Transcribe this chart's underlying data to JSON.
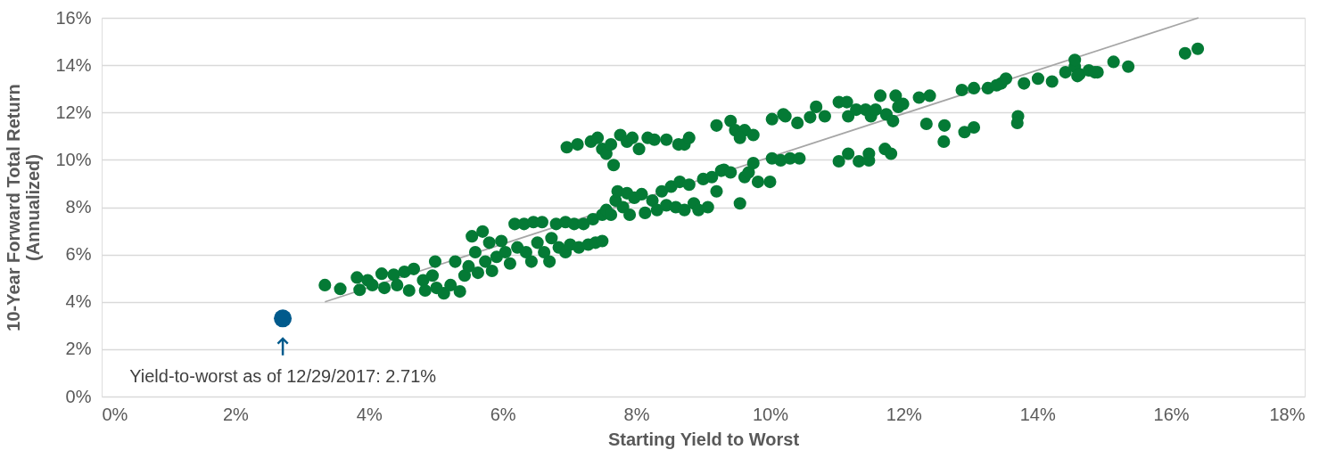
{
  "chart_data": {
    "type": "scatter",
    "xlabel": "Starting Yield to Worst",
    "ylabel": "10-Year Forward Total Return\n(Annualized)",
    "xlim": [
      0,
      18
    ],
    "ylim": [
      0,
      16
    ],
    "xticks": [
      {
        "value": 0,
        "label": "0%"
      },
      {
        "value": 2,
        "label": "2%"
      },
      {
        "value": 4,
        "label": "4%"
      },
      {
        "value": 6,
        "label": "6%"
      },
      {
        "value": 8,
        "label": "8%"
      },
      {
        "value": 10,
        "label": "10%"
      },
      {
        "value": 12,
        "label": "12%"
      },
      {
        "value": 14,
        "label": "14%"
      },
      {
        "value": 16,
        "label": "16%"
      },
      {
        "value": 18,
        "label": "18%"
      }
    ],
    "yticks": [
      {
        "value": 0,
        "label": "0%"
      },
      {
        "value": 2,
        "label": "2%"
      },
      {
        "value": 4,
        "label": "4%"
      },
      {
        "value": 6,
        "label": "6%"
      },
      {
        "value": 8,
        "label": "8%"
      },
      {
        "value": 10,
        "label": "10%"
      },
      {
        "value": 12,
        "label": "12%"
      },
      {
        "value": 14,
        "label": "14%"
      },
      {
        "value": 16,
        "label": "16%"
      }
    ],
    "grid": "y",
    "marker": "circle",
    "series": [
      {
        "type": "line",
        "marker": "none",
        "color": "#a6a6a6",
        "x": [
          3.34,
          16.41
        ],
        "values": [
          4.0,
          16.0
        ]
      },
      {
        "color": "#047a35",
        "x": [
          3.34,
          3.57,
          3.82,
          3.86,
          3.98,
          4.05,
          4.19,
          4.23,
          4.37,
          4.42,
          4.53,
          4.6,
          4.67,
          4.81,
          4.84,
          4.95,
          4.99,
          5.01,
          5.12,
          5.22,
          5.29,
          5.36,
          5.43,
          5.49,
          5.54,
          5.59,
          5.63,
          5.7,
          5.74,
          5.8,
          5.84,
          5.91,
          5.98,
          6.04,
          6.11,
          6.18,
          6.22,
          6.32,
          6.35,
          6.43,
          6.46,
          6.52,
          6.59,
          6.62,
          6.7,
          6.73,
          6.8,
          6.84,
          6.94,
          6.94,
          7.01,
          7.07,
          7.14,
          7.21,
          7.28,
          7.35,
          7.39,
          7.49,
          7.49,
          7.55,
          7.62,
          7.69,
          7.72,
          7.8,
          7.86,
          7.9,
          7.97,
          8.08,
          8.13,
          8.24,
          8.31,
          8.38,
          8.45,
          8.52,
          8.59,
          8.65,
          8.72,
          8.79,
          8.86,
          8.93,
          9.0,
          9.07,
          9.13,
          9.2,
          9.27,
          9.31,
          9.41,
          9.55,
          9.62,
          9.68,
          9.75,
          9.82,
          10.0,
          10.03,
          10.16,
          10.3,
          10.44,
          6.96,
          7.12,
          7.32,
          7.42,
          7.49,
          7.55,
          7.62,
          7.66,
          7.76,
          7.86,
          7.94,
          8.04,
          8.17,
          8.27,
          8.45,
          8.63,
          8.72,
          8.79,
          9.2,
          9.41,
          9.48,
          9.62,
          9.75,
          9.55,
          10.03,
          10.23,
          10.2,
          10.41,
          10.6,
          10.69,
          10.82,
          11.03,
          11.15,
          11.17,
          11.29,
          11.43,
          11.51,
          11.58,
          11.65,
          11.74,
          11.84,
          11.88,
          11.92,
          11.99,
          12.23,
          12.39,
          12.34,
          12.61,
          12.6,
          12.91,
          13.05,
          12.87,
          13.05,
          13.46,
          13.71,
          13.7,
          11.03,
          11.17,
          11.33,
          11.48,
          11.48,
          11.72,
          11.81,
          13.26,
          13.53,
          13.39,
          13.8,
          14.01,
          14.22,
          14.42,
          14.56,
          14.63,
          14.77,
          14.9,
          14.56,
          14.6,
          14.86,
          15.14,
          15.36,
          16.21,
          16.4
        ],
        "values": [
          4.71,
          4.55,
          5.03,
          4.51,
          4.91,
          4.71,
          5.19,
          4.59,
          5.15,
          4.71,
          5.27,
          4.48,
          5.39,
          4.91,
          4.48,
          5.11,
          5.7,
          4.59,
          4.36,
          4.71,
          5.7,
          4.44,
          5.11,
          5.5,
          6.77,
          6.1,
          5.23,
          6.97,
          5.7,
          6.5,
          5.31,
          5.9,
          6.57,
          6.1,
          5.62,
          7.29,
          6.3,
          7.29,
          6.1,
          5.7,
          7.37,
          6.5,
          7.37,
          6.1,
          5.7,
          6.69,
          7.29,
          6.3,
          7.37,
          6.1,
          6.42,
          7.29,
          6.3,
          7.29,
          6.42,
          7.49,
          6.5,
          7.68,
          6.57,
          7.88,
          7.68,
          8.28,
          8.67,
          8.0,
          8.59,
          7.68,
          8.4,
          8.55,
          7.76,
          8.28,
          7.88,
          8.67,
          8.08,
          8.87,
          8.0,
          9.07,
          7.88,
          8.95,
          8.16,
          7.88,
          9.19,
          8.0,
          9.27,
          8.67,
          9.54,
          9.58,
          9.47,
          8.16,
          9.27,
          9.47,
          9.86,
          9.07,
          9.07,
          10.06,
          9.98,
          10.06,
          10.06,
          10.53,
          10.65,
          10.77,
          10.93,
          10.46,
          10.26,
          10.65,
          9.78,
          11.05,
          10.77,
          10.93,
          10.46,
          10.93,
          10.85,
          10.85,
          10.65,
          10.65,
          10.93,
          11.45,
          11.64,
          11.25,
          11.25,
          11.05,
          10.93,
          11.72,
          11.84,
          11.92,
          11.56,
          11.8,
          12.24,
          11.84,
          12.44,
          12.44,
          11.84,
          12.12,
          12.12,
          11.84,
          12.12,
          12.71,
          11.92,
          11.64,
          12.71,
          12.24,
          12.36,
          12.63,
          12.71,
          11.52,
          11.45,
          10.77,
          11.17,
          11.37,
          12.95,
          13.03,
          13.23,
          11.84,
          11.56,
          9.94,
          10.26,
          9.94,
          10.26,
          9.98,
          10.46,
          10.26,
          13.03,
          13.43,
          13.15,
          13.23,
          13.43,
          13.31,
          13.7,
          13.94,
          13.62,
          13.78,
          13.7,
          14.22,
          13.54,
          13.7,
          14.14,
          13.94,
          14.5,
          14.69
        ]
      },
      {
        "type": "scatter",
        "color": "#005a8c",
        "x": [
          2.71
        ],
        "values": [
          3.3
        ]
      }
    ],
    "annotations": [
      {
        "text": "Yield-to-worst as of 12/29/2017: 2.71%",
        "x": 2.71,
        "y": 3.3
      }
    ]
  }
}
